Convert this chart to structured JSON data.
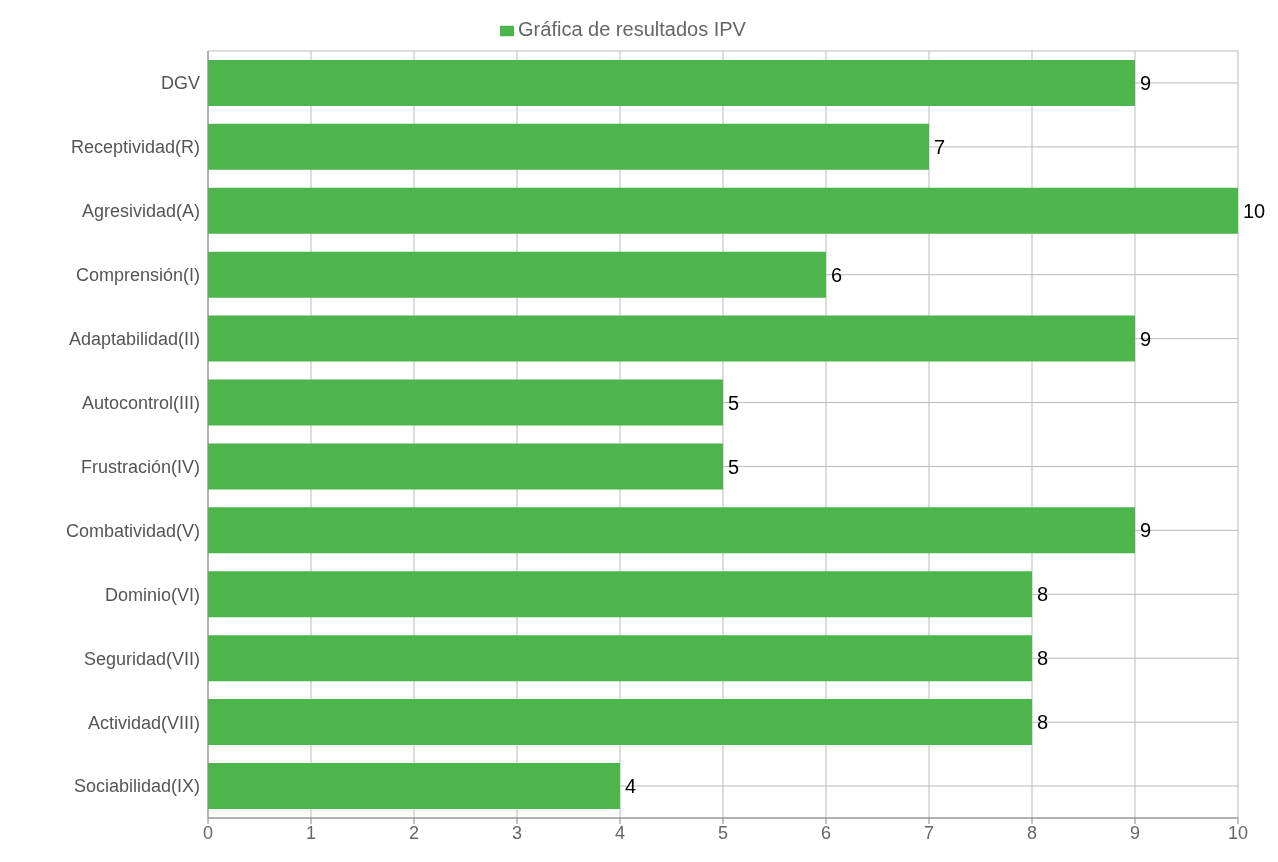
{
  "chart_data": {
    "type": "bar",
    "orientation": "horizontal",
    "categories": [
      "DGV",
      "Receptividad(R)",
      "Agresividad(A)",
      "Comprensión(I)",
      "Adaptabilidad(II)",
      "Autocontrol(III)",
      "Frustración(IV)",
      "Combatividad(V)",
      "Dominio(VI)",
      "Seguridad(VII)",
      "Actividad(VIII)",
      "Sociabilidad(IX)"
    ],
    "series": [
      {
        "name": "Gráfica de resultados IPV",
        "color": "#4cb54c",
        "values": [
          9,
          7,
          10,
          6,
          9,
          5,
          5,
          9,
          8,
          8,
          8,
          4
        ]
      }
    ],
    "xlim": [
      0,
      10
    ],
    "xticks": [
      0,
      1,
      2,
      3,
      4,
      5,
      6,
      7,
      8,
      9,
      10
    ],
    "grid": true,
    "legend": "top",
    "data_labels": true
  }
}
